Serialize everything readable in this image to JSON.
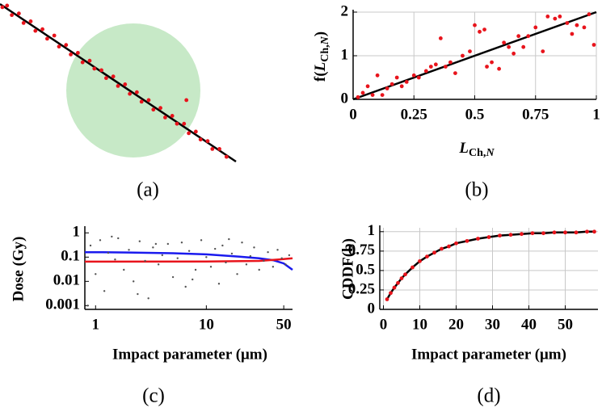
{
  "chart_data": [
    {
      "type": "scatter",
      "label": "(a)",
      "shade_color": "#bde5bd",
      "xlim": [
        0,
        1
      ],
      "ylim": [
        0,
        1
      ],
      "fit": {
        "x": [
          0,
          1
        ],
        "y": [
          1,
          0
        ],
        "color": "#000000"
      },
      "series": [
        {
          "style": "points",
          "color": "#e8141c",
          "x": [
            0.01,
            0.03,
            0.05,
            0.08,
            0.1,
            0.13,
            0.15,
            0.18,
            0.2,
            0.23,
            0.25,
            0.28,
            0.3,
            0.33,
            0.35,
            0.38,
            0.4,
            0.43,
            0.45,
            0.48,
            0.5,
            0.53,
            0.55,
            0.58,
            0.6,
            0.63,
            0.65,
            0.68,
            0.7,
            0.73,
            0.75,
            0.78,
            0.79,
            0.8,
            0.83,
            0.85,
            0.88,
            0.9,
            0.93,
            0.96
          ],
          "values": [
            0.98,
            0.99,
            0.93,
            0.94,
            0.88,
            0.89,
            0.83,
            0.84,
            0.78,
            0.8,
            0.73,
            0.74,
            0.68,
            0.69,
            0.63,
            0.64,
            0.59,
            0.58,
            0.53,
            0.54,
            0.48,
            0.49,
            0.43,
            0.44,
            0.38,
            0.39,
            0.33,
            0.34,
            0.28,
            0.29,
            0.24,
            0.24,
            0.39,
            0.18,
            0.19,
            0.14,
            0.13,
            0.08,
            0.08,
            0.03
          ]
        }
      ]
    },
    {
      "type": "scatter",
      "label": "(b)",
      "grid": true,
      "xlabel": [
        {
          "text": "L",
          "italic": true
        },
        {
          "text": "Ch,",
          "sub": true
        },
        {
          "text": "N",
          "sub": true,
          "italic": true
        }
      ],
      "ylabel": [
        {
          "text": "f("
        },
        {
          "text": "L",
          "italic": true
        },
        {
          "text": "Ch,",
          "sub": true
        },
        {
          "text": "N",
          "sub": true,
          "italic": true
        },
        {
          "text": ")"
        }
      ],
      "xlim": [
        0,
        1
      ],
      "ylim": [
        0,
        2
      ],
      "xticks": [
        0,
        0.25,
        0.5,
        0.75,
        1
      ],
      "yticks": [
        0,
        1,
        2
      ],
      "fit": {
        "x": [
          0,
          1
        ],
        "y": [
          0,
          2
        ],
        "color": "#000000"
      },
      "series": [
        {
          "style": "points",
          "color": "#e8141c",
          "x": [
            0.02,
            0.04,
            0.06,
            0.08,
            0.1,
            0.12,
            0.14,
            0.16,
            0.18,
            0.2,
            0.22,
            0.25,
            0.27,
            0.3,
            0.32,
            0.34,
            0.36,
            0.38,
            0.4,
            0.42,
            0.45,
            0.48,
            0.5,
            0.52,
            0.54,
            0.55,
            0.57,
            0.6,
            0.62,
            0.64,
            0.66,
            0.68,
            0.7,
            0.72,
            0.75,
            0.78,
            0.8,
            0.83,
            0.85,
            0.88,
            0.9,
            0.92,
            0.95,
            0.97,
            0.99
          ],
          "values": [
            0.05,
            0.15,
            0.3,
            0.1,
            0.55,
            0.1,
            0.25,
            0.35,
            0.5,
            0.3,
            0.4,
            0.55,
            0.5,
            0.65,
            0.75,
            0.8,
            1.4,
            0.75,
            0.85,
            0.6,
            1.0,
            1.1,
            1.7,
            1.55,
            1.6,
            0.75,
            0.85,
            0.7,
            1.3,
            1.2,
            1.05,
            1.45,
            1.2,
            1.45,
            1.65,
            1.1,
            1.9,
            1.85,
            1.9,
            1.75,
            1.5,
            1.7,
            1.65,
            1.95,
            1.25
          ]
        }
      ]
    },
    {
      "type": "scatter",
      "label": "(c)",
      "xscale": "log",
      "yscale": "log",
      "xlabel": "Impact parameter (μm)",
      "ylabel": "Dose (Gy)",
      "xlim": [
        0.8,
        60
      ],
      "ylim": [
        0.0007,
        1.5
      ],
      "xticks": [
        1,
        10,
        50
      ],
      "yticks": [
        0.001,
        0.01,
        0.1,
        1
      ],
      "series": [
        {
          "style": "points",
          "color": "#555555",
          "x": [
            0.9,
            1.0,
            1.1,
            1.2,
            1.3,
            1.5,
            1.6,
            1.8,
            2,
            2.2,
            2.5,
            2.8,
            3,
            3.3,
            3.7,
            4,
            4.5,
            5,
            5.5,
            6,
            6.5,
            7,
            8,
            9,
            10,
            11,
            12,
            13,
            14,
            15,
            17,
            19,
            21,
            23,
            25,
            27,
            30,
            33,
            36,
            40,
            44,
            48,
            52,
            56,
            0.85,
            1.4,
            2.4,
            3.5,
            7.5,
            16
          ],
          "values": [
            0.3,
            0.02,
            0.5,
            0.004,
            0.15,
            0.08,
            0.6,
            0.03,
            0.2,
            0.01,
            0.45,
            0.07,
            0.002,
            0.25,
            0.05,
            0.12,
            0.35,
            0.015,
            0.09,
            0.4,
            0.006,
            0.18,
            0.03,
            0.5,
            0.1,
            0.04,
            0.22,
            0.008,
            0.3,
            0.06,
            0.14,
            0.02,
            0.4,
            0.05,
            0.11,
            0.25,
            0.03,
            0.07,
            0.16,
            0.04,
            0.2,
            0.09,
            0.05,
            0.12,
            0.001,
            0.7,
            0.003,
            0.35,
            0.012,
            0.55
          ]
        },
        {
          "style": "line",
          "color": "#1a1aee",
          "x": [
            0.8,
            1,
            2,
            5,
            10,
            20,
            30,
            40,
            50,
            60
          ],
          "values": [
            0.16,
            0.16,
            0.155,
            0.145,
            0.13,
            0.105,
            0.09,
            0.075,
            0.055,
            0.03
          ]
        },
        {
          "style": "line",
          "color": "#e8141c",
          "x": [
            0.8,
            10,
            30,
            45,
            60
          ],
          "values": [
            0.065,
            0.066,
            0.07,
            0.08,
            0.09
          ]
        }
      ]
    },
    {
      "type": "line",
      "label": "(d)",
      "grid": true,
      "xlabel": "Impact parameter (μm)",
      "ylabel": "CDDF(b)",
      "xlim": [
        -1,
        59
      ],
      "ylim": [
        0,
        1.05
      ],
      "xticks": [
        0,
        10,
        20,
        30,
        40,
        50
      ],
      "yticks": [
        0,
        0.25,
        0.5,
        0.75,
        1
      ],
      "series": [
        {
          "style": "line+points",
          "color": "#000000",
          "marker_color": "#e8141c",
          "x": [
            1,
            2,
            3,
            4,
            5,
            6,
            8,
            10,
            12,
            14,
            16,
            18,
            20,
            23,
            26,
            29,
            32,
            35,
            38,
            41,
            44,
            47,
            50,
            53,
            56,
            58
          ],
          "values": [
            0.13,
            0.21,
            0.28,
            0.34,
            0.4,
            0.45,
            0.54,
            0.62,
            0.68,
            0.73,
            0.78,
            0.81,
            0.85,
            0.88,
            0.91,
            0.93,
            0.95,
            0.96,
            0.97,
            0.98,
            0.98,
            0.99,
            0.99,
            0.99,
            1,
            1
          ]
        }
      ]
    }
  ]
}
